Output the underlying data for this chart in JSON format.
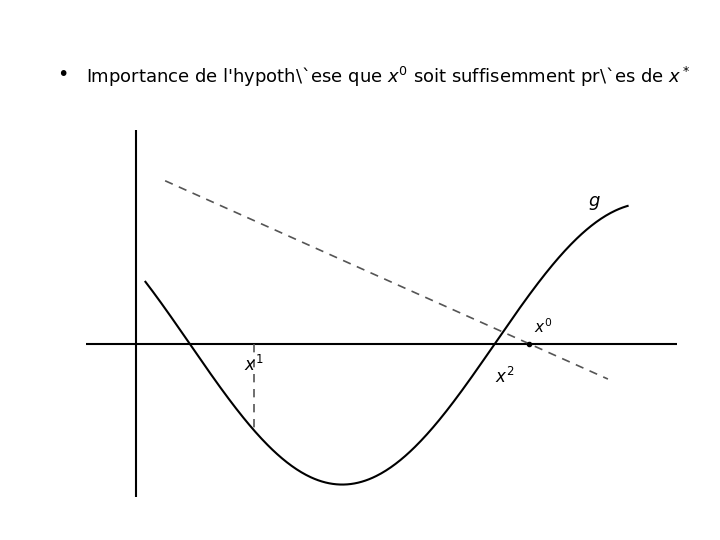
{
  "title_text": "Importance de l’hypothèse que $x^0$ soit suffisemment près de $x^*$",
  "bg_color": "#ffffff",
  "curve_color": "#000000",
  "line_color": "#000000",
  "dashed_color": "#555555",
  "axis_color": "#000000",
  "x1_label": "$x^1$",
  "x0_label": "$x^0$",
  "x2_label": "$x^2$",
  "g_label": "$g$",
  "xlim": [
    -0.5,
    5.5
  ],
  "ylim": [
    -2.5,
    3.5
  ],
  "figsize": [
    7.2,
    5.4
  ],
  "dpi": 100
}
